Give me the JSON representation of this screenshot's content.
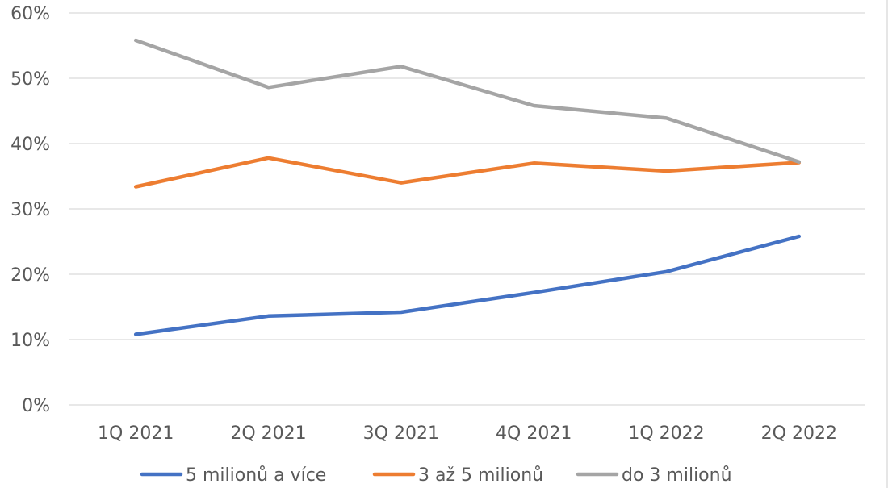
{
  "chart_data": {
    "type": "line",
    "categories": [
      "1Q 2021",
      "2Q 2021",
      "3Q 2021",
      "4Q 2021",
      "1Q 2022",
      "2Q 2022"
    ],
    "ylim": [
      0,
      60
    ],
    "yticks": [
      "0%",
      "10%",
      "20%",
      "30%",
      "40%",
      "50%",
      "60%"
    ],
    "grid": true,
    "legend_position": "bottom",
    "series": [
      {
        "name": "5 milionů a více",
        "color": "#4472C4",
        "values": [
          10.8,
          13.6,
          14.2,
          17.2,
          20.4,
          25.8
        ]
      },
      {
        "name": "3 až 5 milionů",
        "color": "#ED7D31",
        "values": [
          33.4,
          37.8,
          34.0,
          37.0,
          35.8,
          37.1
        ]
      },
      {
        "name": "do 3 milionů",
        "color": "#A5A5A5",
        "values": [
          55.8,
          48.6,
          51.8,
          45.8,
          43.9,
          37.2
        ]
      }
    ]
  }
}
